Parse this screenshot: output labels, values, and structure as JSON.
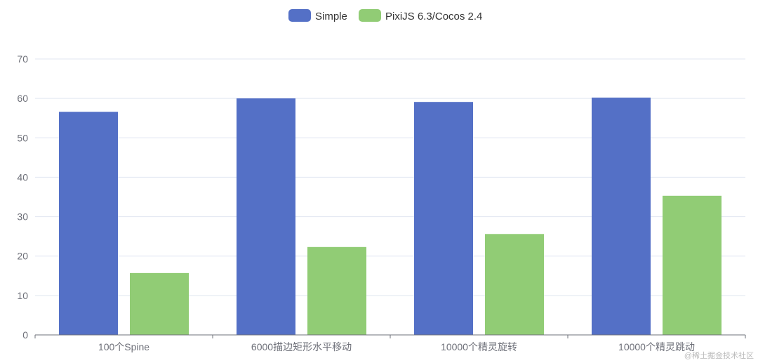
{
  "chart_data": {
    "type": "bar",
    "categories": [
      "100个Spine",
      "6000描边矩形水平移动",
      "10000个精灵旋转",
      "10000个精灵跳动"
    ],
    "series": [
      {
        "name": "Simple",
        "color": "#5470c6",
        "values": [
          56.6,
          60.0,
          59.1,
          60.2
        ]
      },
      {
        "name": "PixiJS 6.3/Cocos 2.4",
        "color": "#91cc75",
        "values": [
          15.7,
          22.3,
          25.6,
          35.3
        ]
      }
    ],
    "ylim": [
      0,
      70
    ],
    "yticks": [
      0,
      10,
      20,
      30,
      40,
      50,
      60,
      70
    ],
    "grid": true,
    "legend": "top-center"
  },
  "watermark": "@稀土掘金技术社区"
}
